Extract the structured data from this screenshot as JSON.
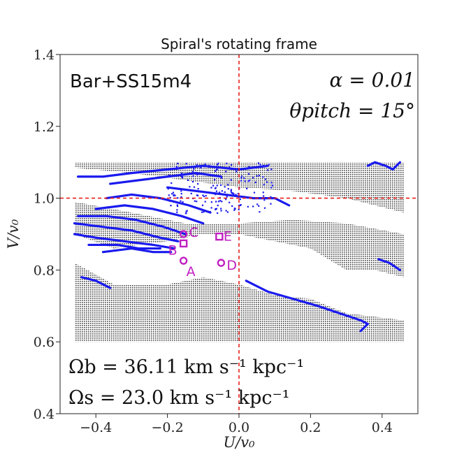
{
  "chart_data": {
    "type": "scatter",
    "title": "Spiral's rotating frame",
    "xlabel": "U/v₀",
    "ylabel": "V/v₀",
    "xlim": [
      -0.5,
      0.5
    ],
    "ylim": [
      0.4,
      1.4
    ],
    "xticks": [
      -0.4,
      -0.2,
      0.0,
      0.2,
      0.4
    ],
    "xtick_labels": [
      "−0.4",
      "−0.2",
      "0.0",
      "0.2",
      "0.4"
    ],
    "yticks": [
      0.4,
      0.6,
      0.8,
      1.0,
      1.2,
      1.4
    ],
    "ytick_labels": [
      "0.4",
      "0.6",
      "0.8",
      "1.0",
      "1.2",
      "1.4"
    ],
    "reference_lines": {
      "x": 0.0,
      "y": 1.0,
      "color": "#e8201c",
      "style": "dashed"
    },
    "annotations": {
      "model": "Bar+SS15m4",
      "alpha": "α = 0.01",
      "pitch": "θpitch = 15°",
      "omega_b": "Ωb = 36.11 km s⁻¹ kpc⁻¹",
      "omega_s": "Ωs = 23.0 km s⁻¹ kpc⁻¹"
    },
    "grid_region": {
      "u_range": [
        -0.46,
        0.46
      ],
      "v_range": [
        0.6,
        1.1
      ],
      "color": "#444444"
    },
    "white_bands": [
      {
        "name": "upper-band",
        "upper": [
          [
            -0.46,
            1.085
          ],
          [
            -0.3,
            1.07
          ],
          [
            -0.15,
            1.05
          ],
          [
            0.0,
            1.03
          ],
          [
            0.15,
            1.02
          ],
          [
            0.3,
            1.0
          ],
          [
            0.46,
            0.96
          ]
        ],
        "lower": [
          [
            -0.46,
            0.99
          ],
          [
            -0.3,
            0.96
          ],
          [
            -0.15,
            0.93
          ],
          [
            0.0,
            0.93
          ],
          [
            0.15,
            0.94
          ],
          [
            0.3,
            0.93
          ],
          [
            0.46,
            0.9
          ]
        ]
      },
      {
        "name": "central-band",
        "upper": [
          [
            -0.46,
            0.9
          ],
          [
            -0.35,
            0.86
          ],
          [
            -0.2,
            0.88
          ],
          [
            -0.1,
            0.9
          ],
          [
            0.0,
            0.9
          ],
          [
            0.1,
            0.88
          ],
          [
            0.2,
            0.86
          ],
          [
            0.3,
            0.8
          ],
          [
            0.46,
            0.74
          ]
        ],
        "lower": [
          [
            -0.46,
            0.82
          ],
          [
            -0.35,
            0.76
          ],
          [
            -0.2,
            0.76
          ],
          [
            -0.1,
            0.78
          ],
          [
            0.0,
            0.76
          ],
          [
            0.1,
            0.73
          ],
          [
            0.2,
            0.72
          ],
          [
            0.3,
            0.68
          ],
          [
            0.46,
            0.66
          ]
        ]
      },
      {
        "name": "lower-right-band",
        "upper": [
          [
            0.2,
            0.82
          ],
          [
            0.3,
            0.8
          ],
          [
            0.38,
            0.8
          ],
          [
            0.46,
            0.78
          ]
        ],
        "lower": [
          [
            0.2,
            0.76
          ],
          [
            0.3,
            0.73
          ],
          [
            0.38,
            0.71
          ],
          [
            0.46,
            0.7
          ]
        ]
      }
    ],
    "blue_tracks": [
      {
        "name": "track-1",
        "color": "#1a1aee",
        "points": [
          [
            -0.37,
            1.0
          ],
          [
            -0.3,
            1.01
          ],
          [
            -0.22,
            1.0
          ],
          [
            -0.14,
            0.98
          ],
          [
            -0.08,
            0.96
          ]
        ]
      },
      {
        "name": "track-2",
        "color": "#1a1aee",
        "points": [
          [
            -0.4,
            0.97
          ],
          [
            -0.32,
            0.98
          ],
          [
            -0.24,
            0.97
          ],
          [
            -0.16,
            0.95
          ],
          [
            -0.1,
            0.93
          ]
        ]
      },
      {
        "name": "track-3",
        "color": "#1a1aee",
        "points": [
          [
            -0.45,
            0.95
          ],
          [
            -0.37,
            0.95
          ],
          [
            -0.29,
            0.94
          ],
          [
            -0.21,
            0.92
          ],
          [
            -0.15,
            0.9
          ]
        ]
      },
      {
        "name": "track-4",
        "color": "#1a1aee",
        "points": [
          [
            -0.46,
            0.93
          ],
          [
            -0.38,
            0.92
          ],
          [
            -0.3,
            0.91
          ],
          [
            -0.22,
            0.89
          ],
          [
            -0.17,
            0.88
          ]
        ]
      },
      {
        "name": "track-5",
        "color": "#1a1aee",
        "points": [
          [
            -0.46,
            0.9
          ],
          [
            -0.4,
            0.89
          ],
          [
            -0.32,
            0.88
          ],
          [
            -0.24,
            0.87
          ],
          [
            -0.18,
            0.86
          ]
        ]
      },
      {
        "name": "track-6",
        "color": "#1a1aee",
        "points": [
          [
            -0.42,
            0.87
          ],
          [
            -0.34,
            0.87
          ],
          [
            -0.28,
            0.86
          ],
          [
            -0.22,
            0.86
          ]
        ]
      },
      {
        "name": "track-7",
        "color": "#1a1aee",
        "points": [
          [
            -0.38,
            0.85
          ],
          [
            -0.3,
            0.86
          ],
          [
            -0.24,
            0.85
          ],
          [
            -0.19,
            0.85
          ]
        ]
      },
      {
        "name": "track-8",
        "color": "#1a1aee",
        "points": [
          [
            -0.45,
            1.06
          ],
          [
            -0.38,
            1.06
          ],
          [
            -0.3,
            1.07
          ],
          [
            -0.2,
            1.08
          ],
          [
            -0.1,
            1.09
          ],
          [
            0.0,
            1.08
          ],
          [
            0.08,
            1.09
          ]
        ]
      },
      {
        "name": "track-9",
        "color": "#1a1aee",
        "points": [
          [
            -0.36,
            1.04
          ],
          [
            -0.28,
            1.05
          ],
          [
            -0.2,
            1.06
          ],
          [
            -0.12,
            1.07
          ],
          [
            -0.05,
            1.06
          ]
        ]
      },
      {
        "name": "track-10",
        "color": "#1a1aee",
        "points": [
          [
            -0.2,
            1.03
          ],
          [
            -0.12,
            1.02
          ],
          [
            -0.04,
            1.01
          ],
          [
            0.04,
            1.0
          ],
          [
            0.1,
            1.0
          ],
          [
            0.14,
            0.98
          ]
        ]
      },
      {
        "name": "track-11",
        "color": "#1a1aee",
        "points": [
          [
            -0.44,
            0.78
          ],
          [
            -0.4,
            0.77
          ],
          [
            -0.36,
            0.75
          ]
        ]
      },
      {
        "name": "track-12",
        "color": "#1a1aee",
        "points": [
          [
            0.02,
            0.77
          ],
          [
            0.08,
            0.74
          ],
          [
            0.15,
            0.72
          ],
          [
            0.22,
            0.7
          ],
          [
            0.28,
            0.68
          ],
          [
            0.34,
            0.66
          ],
          [
            0.36,
            0.65
          ],
          [
            0.34,
            0.63
          ]
        ]
      },
      {
        "name": "track-13",
        "color": "#1a1aee",
        "points": [
          [
            0.39,
            0.83
          ],
          [
            0.42,
            0.82
          ],
          [
            0.45,
            0.8
          ]
        ]
      },
      {
        "name": "track-14",
        "color": "#1a1aee",
        "points": [
          [
            0.36,
            1.09
          ],
          [
            0.38,
            1.1
          ],
          [
            0.41,
            1.09
          ],
          [
            0.43,
            1.08
          ],
          [
            0.45,
            1.1
          ]
        ]
      }
    ],
    "marked_points": [
      {
        "label": "A",
        "u": -0.155,
        "v": 0.826,
        "marker": "circle"
      },
      {
        "label": "B",
        "u": -0.155,
        "v": 0.874,
        "marker": "square"
      },
      {
        "label": "C",
        "u": -0.155,
        "v": 0.9,
        "marker": "circle"
      },
      {
        "label": "D",
        "u": -0.05,
        "v": 0.82,
        "marker": "circle"
      },
      {
        "label": "E",
        "u": -0.055,
        "v": 0.893,
        "marker": "square"
      }
    ],
    "marker_color": "#c020c0"
  }
}
